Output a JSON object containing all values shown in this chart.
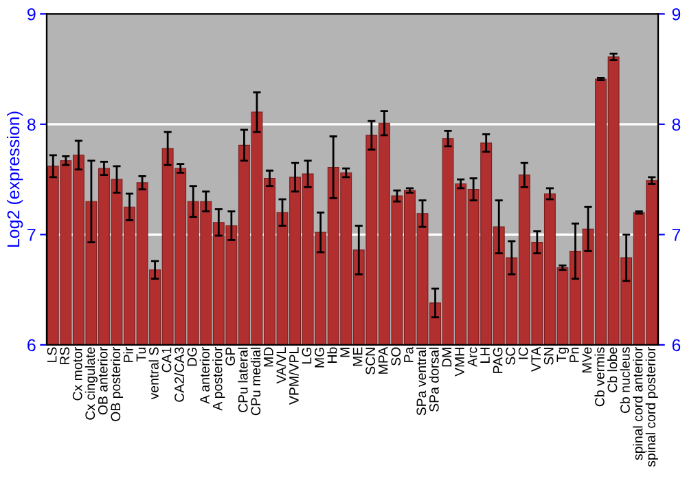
{
  "chart_data": {
    "type": "bar",
    "ylabel": "Log2 (expression)",
    "categories": [
      "LS",
      "RS",
      "Cx motor",
      "Cx cingulate",
      "OB anterior",
      "OB posterior",
      "Pir",
      "Tu",
      "ventral S",
      "CA1",
      "CA2/CA3",
      "DG",
      "A anterior",
      "A posterior",
      "GP",
      "CPu lateral",
      "CPu medial",
      "MD",
      "VA/VL",
      "VPM/VPL",
      "LG",
      "MG",
      "Hb",
      "M",
      "ME",
      "SCN",
      "MPA",
      "SO",
      "Pa",
      "SPa ventral",
      "SPa dorsal",
      "DM",
      "VMH",
      "Arc",
      "LH",
      "PAG",
      "SC",
      "IC",
      "VTA",
      "SN",
      "Tg",
      "Pn",
      "MVe",
      "Cb vermis",
      "Cb lobe",
      "Cb nucleus",
      "spinal cord anterior",
      "spinal cord posterior"
    ],
    "values": [
      7.62,
      7.67,
      7.72,
      7.3,
      7.6,
      7.5,
      7.25,
      7.47,
      6.68,
      7.78,
      7.6,
      7.3,
      7.3,
      7.11,
      7.08,
      7.81,
      8.11,
      7.51,
      7.2,
      7.52,
      7.55,
      7.02,
      7.61,
      7.56,
      6.86,
      7.9,
      8.01,
      7.35,
      7.4,
      7.19,
      6.38,
      7.87,
      7.46,
      7.41,
      7.83,
      7.07,
      6.79,
      7.54,
      6.93,
      7.37,
      6.7,
      6.85,
      7.05,
      8.41,
      8.61,
      6.79,
      7.2,
      7.49
    ],
    "errors": [
      0.1,
      0.04,
      0.13,
      0.37,
      0.06,
      0.12,
      0.12,
      0.06,
      0.08,
      0.15,
      0.04,
      0.14,
      0.09,
      0.12,
      0.13,
      0.14,
      0.18,
      0.07,
      0.12,
      0.13,
      0.12,
      0.18,
      0.28,
      0.04,
      0.22,
      0.13,
      0.11,
      0.05,
      0.02,
      0.12,
      0.13,
      0.07,
      0.04,
      0.1,
      0.08,
      0.24,
      0.15,
      0.11,
      0.1,
      0.05,
      0.02,
      0.25,
      0.2,
      0.01,
      0.03,
      0.21,
      0.01,
      0.03
    ],
    "color": "#b22f2f",
    "ylim": [
      6,
      9
    ],
    "yticks": [
      6,
      7,
      8,
      9
    ],
    "y2lim": [
      6,
      9
    ],
    "y2ticks": [
      6,
      7,
      8,
      9
    ],
    "grid": "y"
  }
}
